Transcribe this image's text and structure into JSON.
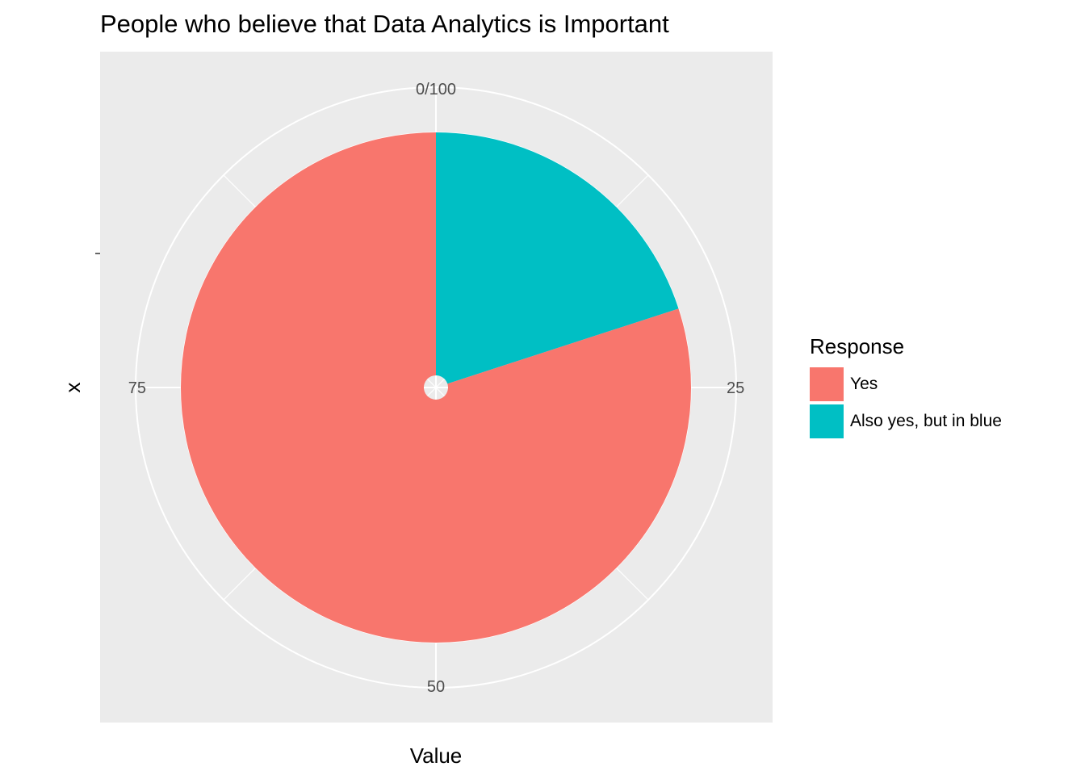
{
  "chart_data": {
    "type": "pie",
    "title": "People who believe that Data Analytics is Important",
    "xlabel": "Value",
    "ylabel": "x",
    "slices": [
      {
        "label": "Also yes, but in blue",
        "value": 20,
        "color": "#00BFC4"
      },
      {
        "label": "Yes",
        "value": 80,
        "color": "#F8766D"
      }
    ],
    "theta_range": [
      0,
      100
    ],
    "theta_ticks": [
      "0/100",
      "25",
      "50",
      "75"
    ],
    "grid": true,
    "legend": {
      "title": "Response",
      "position": "right",
      "entries": [
        {
          "label": "Yes",
          "color": "#F8766D"
        },
        {
          "label": "Also yes, but in blue",
          "color": "#00BFC4"
        }
      ]
    },
    "panel_background": "#EBEBEB",
    "grid_color": "#FFFFFF"
  }
}
